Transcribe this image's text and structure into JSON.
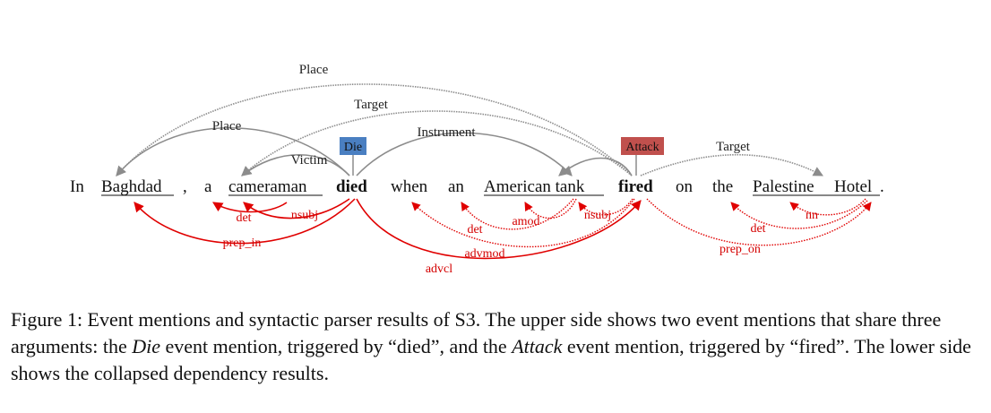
{
  "sentence": {
    "tokens": [
      "In",
      "Baghdad",
      ",",
      "a",
      "cameraman",
      "died",
      "when",
      "an",
      "American tank",
      "fired",
      "on",
      "the",
      "Palestine",
      "Hotel",
      "."
    ]
  },
  "event_types": {
    "die": "Die",
    "attack": "Attack"
  },
  "colors": {
    "die_tag": "#4a7fc1",
    "attack_tag": "#c0504d",
    "argument_arc": "#8c8c8c",
    "dependency_arc": "#e00000",
    "dependency_label": "#d40000"
  },
  "argument_labels": {
    "place_long": "Place",
    "target_upper": "Target",
    "place_short": "Place",
    "instrument": "Instrument",
    "victim": "Victim",
    "target_right": "Target"
  },
  "dependency_labels": {
    "det_cameraman": "det",
    "nsubj_died": "nsubj",
    "prep_in": "prep_in",
    "advcl": "advcl",
    "det_tank": "det",
    "amod": "amod",
    "nsubj_fired": "nsubj",
    "advmod": "advmod",
    "det_hotel": "det",
    "nn": "nn",
    "prep_on": "prep_on"
  },
  "caption": {
    "lead": "Figure 1: Event mentions and syntactic parser results of S3. The upper side shows two event mentions that share three arguments: the ",
    "event1": "Die",
    "mid1": " event mention, triggered by “died”, and the ",
    "event2": "Attack",
    "mid2": " event mention, triggered by “fired”. The lower side shows the collapsed dependency results."
  }
}
